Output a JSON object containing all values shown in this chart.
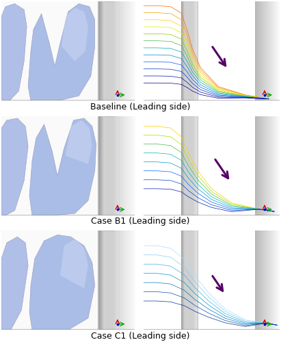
{
  "rows": 3,
  "row_labels": [
    "Baseline (Leading side)",
    "Case B1 (Leading side)",
    "Case C1 (Leading side)"
  ],
  "fig_width": 4.11,
  "fig_height": 5.0,
  "dpi": 100,
  "bg_color": "#ffffff",
  "blob_face": "#aec0e8",
  "blob_face2": "#b8caee",
  "blob_highlight": "#d8e4f8",
  "blob_shadow": "#8899cc",
  "blob_edge": "#9999bb",
  "cylinder_face": "#c8c8c8",
  "cylinder_edge": "#999999",
  "label_fontsize": 9,
  "label_fontfamily": "DejaVu Sans",
  "stream_colors_baseline": [
    "#ff6600",
    "#ff9900",
    "#ffcc00",
    "#ddee00",
    "#88cc00",
    "#44bb44",
    "#00aaaa",
    "#0088cc",
    "#0055ff",
    "#0033bb",
    "#0011aa",
    "#000088"
  ],
  "stream_colors_b1": [
    "#ffcc00",
    "#aadd00",
    "#44bb44",
    "#00bbaa",
    "#0099cc",
    "#0066ff",
    "#0044cc",
    "#0022aa"
  ],
  "stream_colors_c1": [
    "#aaddff",
    "#88ccee",
    "#44aadd",
    "#0099cc",
    "#0077bb",
    "#0055aa",
    "#003399"
  ],
  "arrow_color": "#550066",
  "grid_color": "#dddddd",
  "axis_r": "#cc0000",
  "axis_g": "#00aa00",
  "axis_b": "#0000cc"
}
